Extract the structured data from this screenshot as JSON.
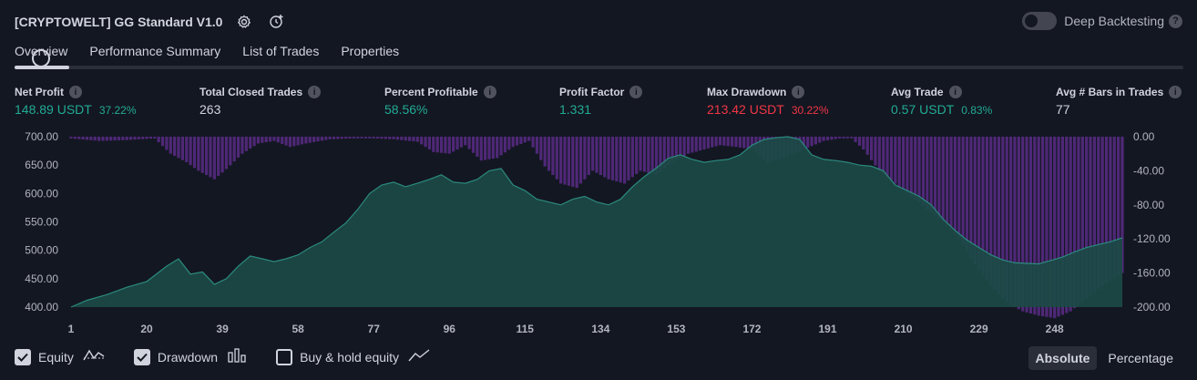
{
  "header": {
    "title": "[CRYPTOWELT] GG Standard V1.0",
    "deep_backtesting_label": "Deep Backtesting"
  },
  "tabs": [
    "Overview",
    "Performance Summary",
    "List of Trades",
    "Properties"
  ],
  "active_tab": "Overview",
  "stats": {
    "net_profit": {
      "label": "Net Profit",
      "value": "148.89 USDT",
      "pct": "37.22%"
    },
    "total_closed_trades": {
      "label": "Total Closed Trades",
      "value": "263"
    },
    "percent_profitable": {
      "label": "Percent Profitable",
      "value": "58.56%"
    },
    "profit_factor": {
      "label": "Profit Factor",
      "value": "1.331"
    },
    "max_drawdown": {
      "label": "Max Drawdown",
      "value": "213.42 USDT",
      "pct": "30.22%"
    },
    "avg_trade": {
      "label": "Avg Trade",
      "value": "0.57 USDT",
      "pct": "0.83%"
    },
    "avg_bars": {
      "label": "Avg # Bars in Trades",
      "value": "77"
    }
  },
  "colors": {
    "background": "#131722",
    "green": "#22ab94",
    "red": "#f23645",
    "equity_fill": "#1c4a46",
    "equity_line": "#2b8a7e",
    "drawdown_bar": "#5b2c86"
  },
  "chart_data": {
    "type": "area",
    "x_ticks": [
      "1",
      "20",
      "39",
      "58",
      "77",
      "96",
      "115",
      "134",
      "153",
      "172",
      "191",
      "210",
      "229",
      "248"
    ],
    "left_axis": {
      "ticks": [
        "700.00",
        "650.00",
        "600.00",
        "550.00",
        "500.00",
        "450.00",
        "400.00"
      ],
      "ylim": [
        400,
        700
      ]
    },
    "right_axis": {
      "ticks": [
        "0.00",
        "-40.00",
        "-80.00",
        "-120.00",
        "-160.00",
        "-200.00"
      ],
      "ylim": [
        -200,
        0
      ]
    },
    "series": [
      {
        "name": "Equity",
        "x": [
          1,
          5,
          10,
          15,
          20,
          25,
          28,
          31,
          34,
          37,
          40,
          43,
          46,
          49,
          52,
          55,
          58,
          61,
          64,
          67,
          70,
          73,
          76,
          79,
          82,
          85,
          88,
          91,
          94,
          97,
          100,
          103,
          106,
          109,
          112,
          115,
          118,
          121,
          124,
          127,
          130,
          133,
          136,
          139,
          142,
          145,
          148,
          151,
          154,
          157,
          160,
          163,
          166,
          169,
          172,
          175,
          178,
          181,
          184,
          187,
          190,
          193,
          196,
          199,
          202,
          205,
          208,
          211,
          214,
          217,
          220,
          223,
          226,
          229,
          232,
          235,
          238,
          241,
          244,
          247,
          250,
          253,
          256,
          259,
          262,
          265
        ],
        "values": [
          400,
          412,
          422,
          435,
          445,
          472,
          485,
          458,
          462,
          440,
          450,
          472,
          490,
          485,
          480,
          485,
          492,
          505,
          515,
          532,
          548,
          572,
          600,
          615,
          620,
          612,
          618,
          625,
          633,
          620,
          618,
          625,
          640,
          644,
          615,
          605,
          590,
          585,
          580,
          590,
          595,
          585,
          580,
          590,
          612,
          630,
          645,
          662,
          668,
          660,
          655,
          658,
          660,
          668,
          685,
          695,
          698,
          700,
          695,
          668,
          660,
          658,
          655,
          650,
          648,
          640,
          615,
          605,
          595,
          580,
          555,
          535,
          518,
          505,
          492,
          483,
          478,
          477,
          476,
          482,
          488,
          497,
          505,
          510,
          515,
          522
        ]
      },
      {
        "name": "Drawdown",
        "x": [
          1,
          8,
          15,
          22,
          26,
          30,
          33,
          37,
          40,
          44,
          48,
          52,
          56,
          60,
          66,
          72,
          77,
          82,
          88,
          92,
          96,
          100,
          104,
          108,
          112,
          116,
          120,
          124,
          128,
          132,
          136,
          140,
          144,
          148,
          152,
          156,
          160,
          164,
          168,
          172,
          176,
          180,
          185,
          190,
          194,
          197,
          200,
          204,
          208,
          212,
          216,
          220,
          224,
          228,
          232,
          236,
          240,
          244,
          248,
          252,
          256,
          260,
          265
        ],
        "values": [
          -2,
          -5,
          -4,
          -2,
          -20,
          -30,
          -40,
          -50,
          -38,
          -20,
          -8,
          -5,
          -12,
          -8,
          -3,
          -2,
          -2,
          -3,
          -6,
          -18,
          -20,
          -10,
          -28,
          -25,
          -12,
          -5,
          -35,
          -55,
          -60,
          -40,
          -50,
          -55,
          -40,
          -45,
          -30,
          -20,
          -15,
          -10,
          -12,
          -15,
          -30,
          -25,
          -15,
          -5,
          -2,
          -2,
          -15,
          -40,
          -55,
          -70,
          -85,
          -100,
          -120,
          -150,
          -175,
          -195,
          -205,
          -210,
          -213,
          -205,
          -190,
          -175,
          -160
        ]
      }
    ],
    "xlim": [
      1,
      265
    ]
  },
  "legend": {
    "equity_label": "Equity",
    "drawdown_label": "Drawdown",
    "buyhold_label": "Buy & hold equity",
    "equity_checked": true,
    "drawdown_checked": true,
    "buyhold_checked": false
  },
  "modes": {
    "absolute_label": "Absolute",
    "percentage_label": "Percentage",
    "active": "Absolute"
  }
}
